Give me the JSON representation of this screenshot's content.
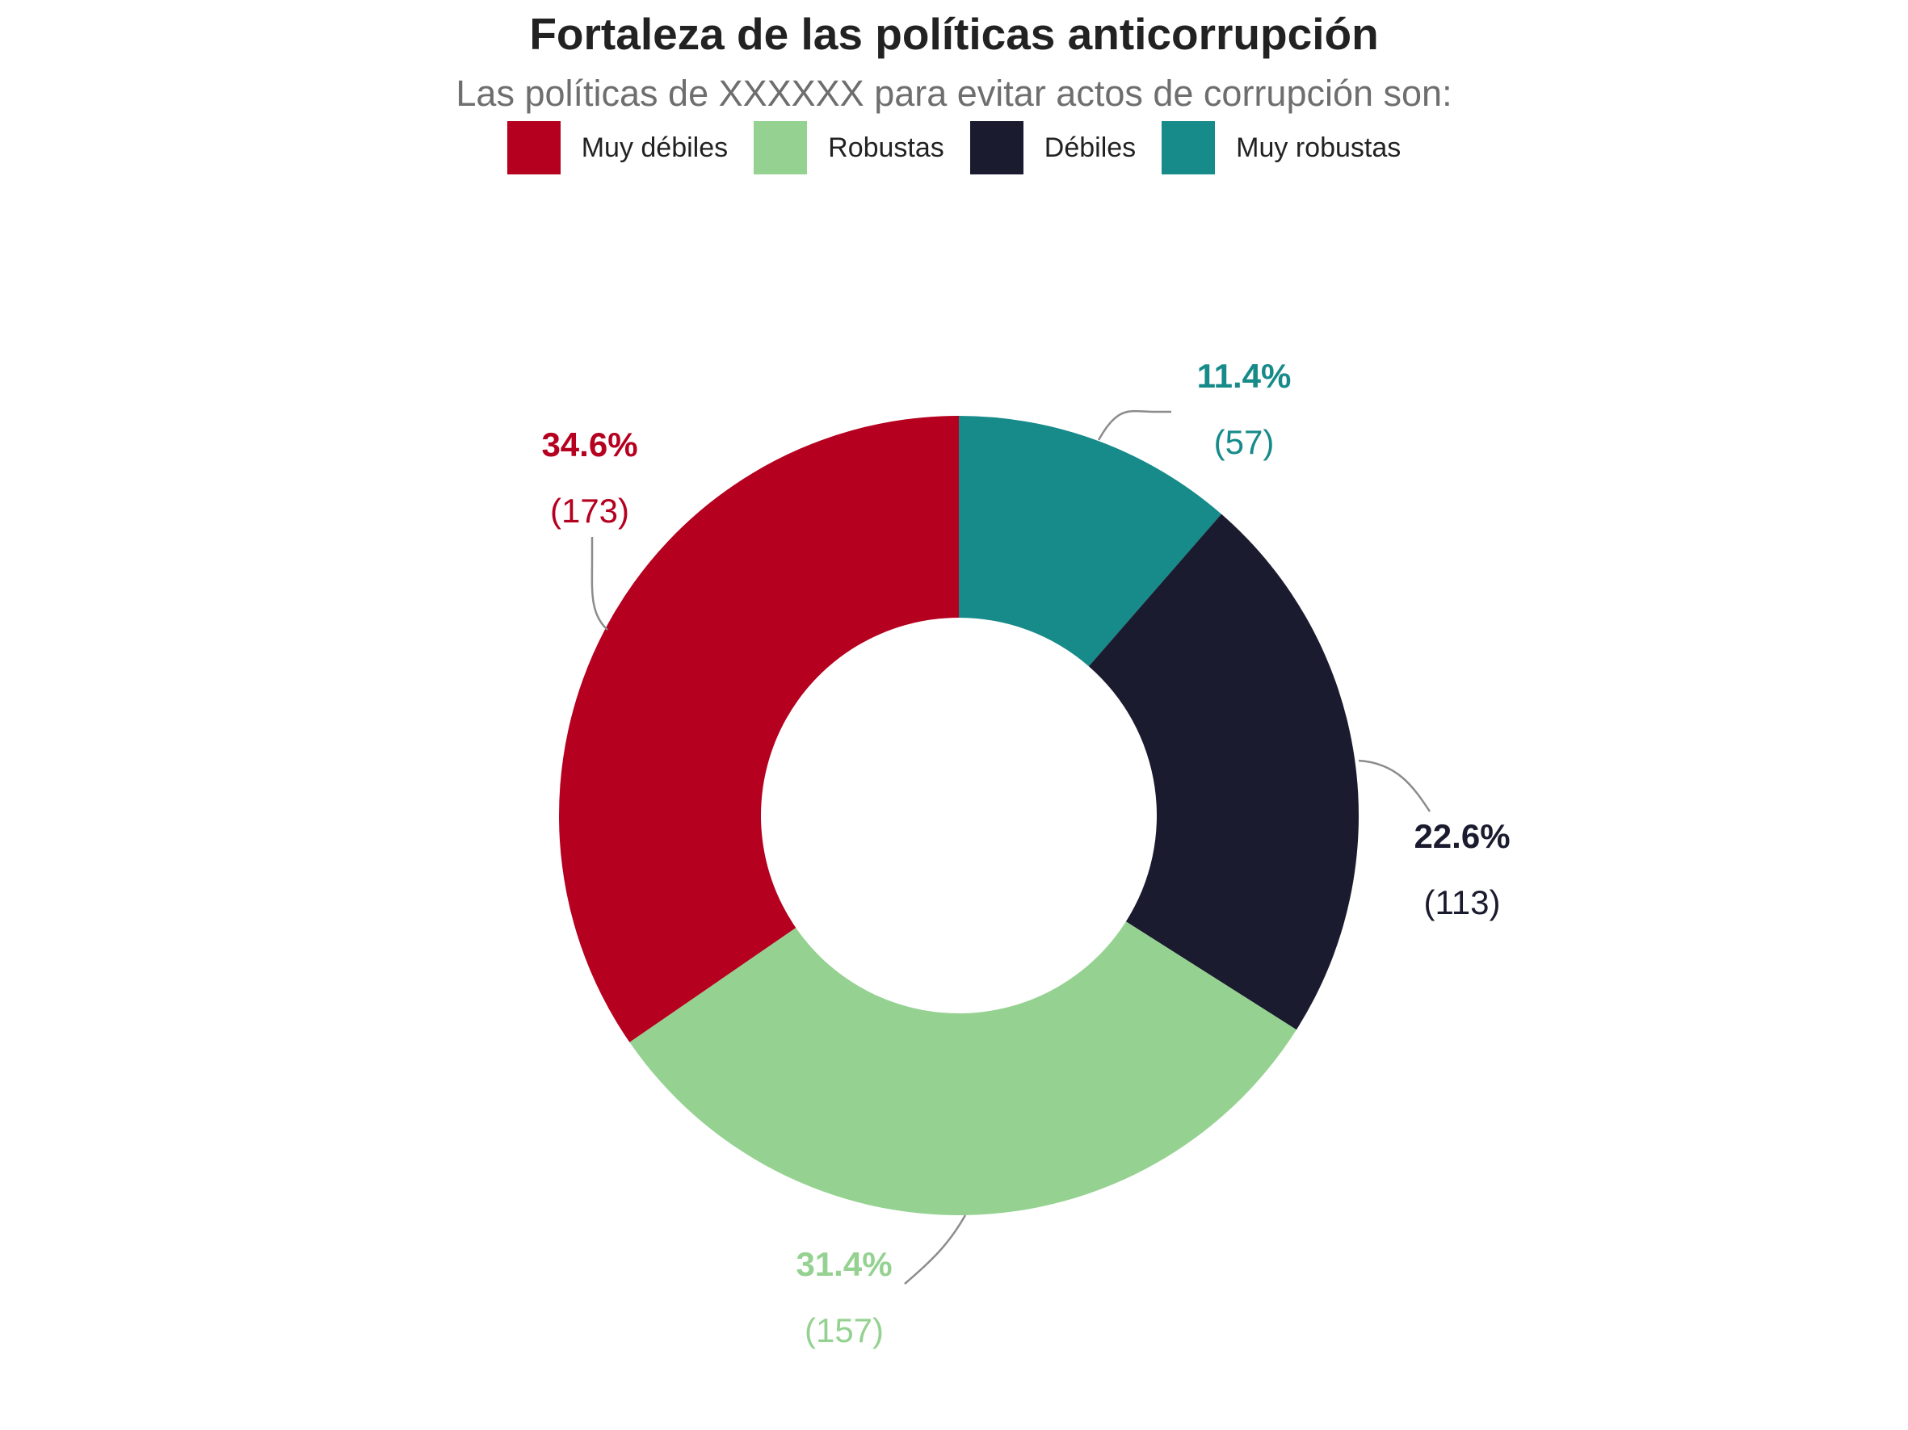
{
  "chart_data": {
    "type": "pie",
    "donut": true,
    "title": "Fortaleza de las políticas anticorrupción",
    "subtitle": "Las políticas de XXXXXX para evitar actos de corrupción son:",
    "legend_position": "top",
    "slices": [
      {
        "label": "Muy robustas",
        "value": 57,
        "percent_label": "11.4%",
        "count_label": "(57)",
        "color": "#178a8a"
      },
      {
        "label": "Débiles",
        "value": 113,
        "percent_label": "22.6%",
        "count_label": "(113)",
        "color": "#1b1b2f"
      },
      {
        "label": "Robustas",
        "value": 157,
        "percent_label": "31.4%",
        "count_label": "(157)",
        "color": "#95d291"
      },
      {
        "label": "Muy débiles",
        "value": 173,
        "percent_label": "34.6%",
        "count_label": "(173)",
        "color": "#b5001f"
      }
    ],
    "legend": [
      {
        "label": "Muy débiles",
        "color": "#b5001f"
      },
      {
        "label": "Robustas",
        "color": "#95d291"
      },
      {
        "label": "Débiles",
        "color": "#1b1b2f"
      },
      {
        "label": "Muy robustas",
        "color": "#178a8a"
      }
    ]
  }
}
